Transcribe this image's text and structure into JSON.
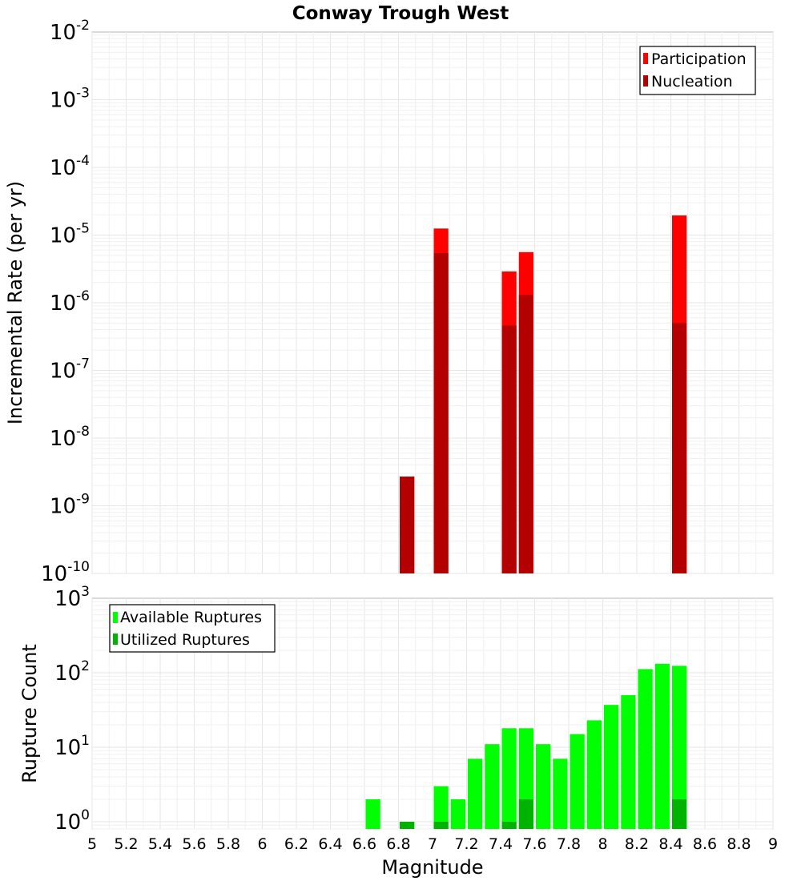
{
  "title": "Conway Trough West",
  "colors": {
    "participation": "#ff0000",
    "nucleation": "#b30000",
    "available": "#00ff00",
    "utilized": "#00b300"
  },
  "chart_data": [
    {
      "type": "bar",
      "panel": "top",
      "ylabel": "Incremental Rate (per yr)",
      "yscale": "log",
      "ylim": [
        1e-10,
        0.01
      ],
      "y_tick_exponents": [
        "-10",
        "-9",
        "-8",
        "-7",
        "-6",
        "-5",
        "-4",
        "-3",
        "-2"
      ],
      "y_tick_base": "10",
      "legend_position": "top-right",
      "legend": [
        "Participation",
        "Nucleation"
      ],
      "series": [
        {
          "name": "Participation",
          "points": [
            {
              "x": 6.85,
              "y": 2.7e-09
            },
            {
              "x": 7.05,
              "y": 1.25e-05
            },
            {
              "x": 7.45,
              "y": 2.9e-06
            },
            {
              "x": 7.55,
              "y": 5.6e-06
            },
            {
              "x": 8.45,
              "y": 1.95e-05
            }
          ]
        },
        {
          "name": "Nucleation",
          "points": [
            {
              "x": 6.85,
              "y": 2.7e-09
            },
            {
              "x": 7.05,
              "y": 5.4e-06
            },
            {
              "x": 7.45,
              "y": 4.6e-07
            },
            {
              "x": 7.55,
              "y": 1.3e-06
            },
            {
              "x": 8.45,
              "y": 5e-07
            }
          ]
        }
      ]
    },
    {
      "type": "bar",
      "panel": "bottom",
      "ylabel": "Rupture Count",
      "yscale": "log",
      "ylim": [
        0.8,
        1000
      ],
      "y_tick_exponents": [
        "0",
        "1",
        "2",
        "3"
      ],
      "y_tick_base": "10",
      "legend_position": "top-left",
      "legend": [
        "Available Ruptures",
        "Utilized Ruptures"
      ],
      "series": [
        {
          "name": "Available Ruptures",
          "points": [
            {
              "x": 6.65,
              "y": 2
            },
            {
              "x": 6.85,
              "y": 1
            },
            {
              "x": 7.05,
              "y": 3
            },
            {
              "x": 7.15,
              "y": 2
            },
            {
              "x": 7.25,
              "y": 7
            },
            {
              "x": 7.35,
              "y": 11
            },
            {
              "x": 7.45,
              "y": 18
            },
            {
              "x": 7.55,
              "y": 18
            },
            {
              "x": 7.65,
              "y": 11
            },
            {
              "x": 7.75,
              "y": 7
            },
            {
              "x": 7.85,
              "y": 15
            },
            {
              "x": 7.95,
              "y": 23
            },
            {
              "x": 8.05,
              "y": 37
            },
            {
              "x": 8.15,
              "y": 50
            },
            {
              "x": 8.25,
              "y": 112
            },
            {
              "x": 8.35,
              "y": 132
            },
            {
              "x": 8.45,
              "y": 124
            }
          ]
        },
        {
          "name": "Utilized Ruptures",
          "points": [
            {
              "x": 6.85,
              "y": 1
            },
            {
              "x": 7.05,
              "y": 1
            },
            {
              "x": 7.45,
              "y": 1
            },
            {
              "x": 7.55,
              "y": 2
            },
            {
              "x": 8.45,
              "y": 2
            }
          ]
        }
      ]
    }
  ],
  "x_axis": {
    "xlabel": "Magnitude",
    "xlim": [
      5,
      9
    ],
    "ticks": [
      "5",
      "5.2",
      "5.4",
      "5.6",
      "5.8",
      "6",
      "6.2",
      "6.4",
      "6.6",
      "6.8",
      "7",
      "7.2",
      "7.4",
      "7.6",
      "7.8",
      "8",
      "8.2",
      "8.4",
      "8.6",
      "8.8",
      "9"
    ],
    "bin_width": 0.1
  }
}
